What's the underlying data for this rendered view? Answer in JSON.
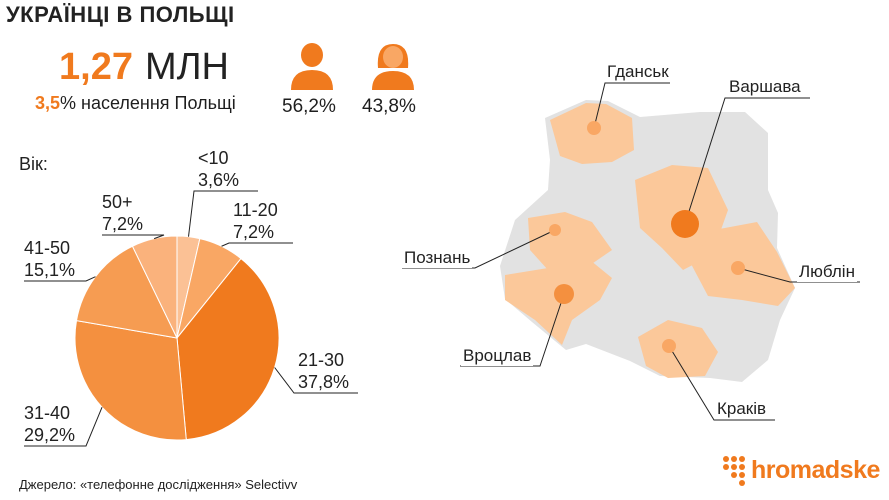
{
  "title": "УКРАЇНЦІ В ПОЛЬЩІ",
  "total": {
    "value": "1,27",
    "unit": "МЛН"
  },
  "share": {
    "value": "3,5",
    "text": "% населення Польщі"
  },
  "gender": {
    "male_pct": "56,2%",
    "female_pct": "43,8%",
    "male_icon": "male-person-icon",
    "female_icon": "female-person-icon"
  },
  "source": "Джерело: «телефонне дослідження» Selectivv",
  "logo": {
    "text": "hromadske",
    "icon": "hromadske-dots-icon"
  },
  "colors": {
    "accent": "#f07a1e",
    "map_land": "#e2e2e2",
    "map_region": "#fbc89a",
    "text": "#222222"
  },
  "chart_data": {
    "type": "pie",
    "title": "Вік:",
    "slices": [
      {
        "label": "<10",
        "value": 3.6,
        "value_label": "3,6%",
        "color": "#fbc195"
      },
      {
        "label": "11-20",
        "value": 7.2,
        "value_label": "7,2%",
        "color": "#f9a764"
      },
      {
        "label": "21-30",
        "value": 37.8,
        "value_label": "37,8%",
        "color": "#f07a1e"
      },
      {
        "label": "31-40",
        "value": 29.2,
        "value_label": "29,2%",
        "color": "#f4903f"
      },
      {
        "label": "41-50",
        "value": 15.1,
        "value_label": "15,1%",
        "color": "#f69c52"
      },
      {
        "label": "50+",
        "value": 7.2,
        "value_label": "7,2%",
        "color": "#fab27c"
      }
    ]
  },
  "map": {
    "cities": [
      {
        "name": "Гданськ",
        "highlight": false
      },
      {
        "name": "Варшава",
        "highlight": true
      },
      {
        "name": "Познань",
        "highlight": false
      },
      {
        "name": "Люблін",
        "highlight": false
      },
      {
        "name": "Вроцлав",
        "highlight": false
      },
      {
        "name": "Краків",
        "highlight": false
      }
    ]
  }
}
